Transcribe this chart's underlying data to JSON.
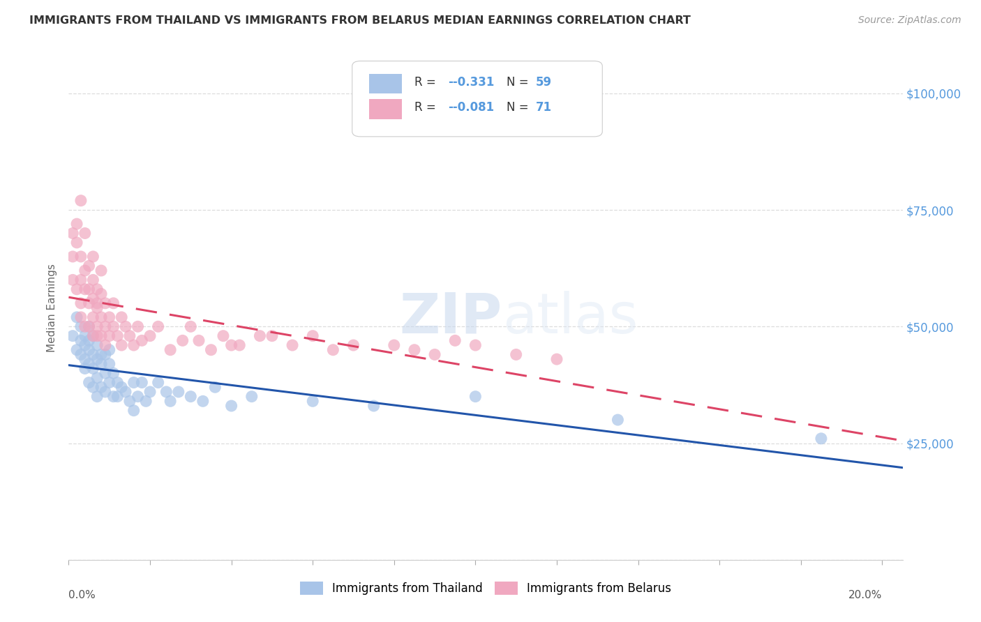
{
  "title": "IMMIGRANTS FROM THAILAND VS IMMIGRANTS FROM BELARUS MEDIAN EARNINGS CORRELATION CHART",
  "source": "Source: ZipAtlas.com",
  "ylabel": "Median Earnings",
  "yticks": [
    0,
    25000,
    50000,
    75000,
    100000
  ],
  "ytick_labels": [
    "",
    "$25,000",
    "$50,000",
    "$75,000",
    "$100,000"
  ],
  "xlim": [
    0.0,
    0.205
  ],
  "ylim": [
    0,
    108000
  ],
  "watermark_zip": "ZIP",
  "watermark_atlas": "atlas",
  "legend_blue_r": "-0.331",
  "legend_blue_n": "59",
  "legend_pink_r": "-0.081",
  "legend_pink_n": "71",
  "legend_blue_label": "Immigrants from Thailand",
  "legend_pink_label": "Immigrants from Belarus",
  "blue_scatter_color": "#a8c4e8",
  "pink_scatter_color": "#f0a8c0",
  "blue_line_color": "#2255aa",
  "pink_line_color": "#dd4466",
  "background_color": "#ffffff",
  "grid_color": "#dddddd",
  "title_color": "#333333",
  "right_tick_color": "#5599dd",
  "watermark_color": "#d0dff0",
  "thailand_x": [
    0.001,
    0.002,
    0.002,
    0.003,
    0.003,
    0.003,
    0.004,
    0.004,
    0.004,
    0.004,
    0.005,
    0.005,
    0.005,
    0.005,
    0.005,
    0.006,
    0.006,
    0.006,
    0.006,
    0.007,
    0.007,
    0.007,
    0.007,
    0.008,
    0.008,
    0.008,
    0.009,
    0.009,
    0.009,
    0.01,
    0.01,
    0.01,
    0.011,
    0.011,
    0.012,
    0.012,
    0.013,
    0.014,
    0.015,
    0.016,
    0.016,
    0.017,
    0.018,
    0.019,
    0.02,
    0.022,
    0.024,
    0.025,
    0.027,
    0.03,
    0.033,
    0.036,
    0.04,
    0.045,
    0.06,
    0.075,
    0.1,
    0.135,
    0.185
  ],
  "thailand_y": [
    48000,
    52000,
    45000,
    50000,
    44000,
    47000,
    43000,
    48000,
    41000,
    46000,
    50000,
    42000,
    45000,
    47000,
    38000,
    44000,
    48000,
    41000,
    37000,
    43000,
    46000,
    39000,
    35000,
    42000,
    44000,
    37000,
    40000,
    44000,
    36000,
    42000,
    45000,
    38000,
    40000,
    35000,
    38000,
    35000,
    37000,
    36000,
    34000,
    38000,
    32000,
    35000,
    38000,
    34000,
    36000,
    38000,
    36000,
    34000,
    36000,
    35000,
    34000,
    37000,
    33000,
    35000,
    34000,
    33000,
    35000,
    30000,
    26000
  ],
  "belarus_x": [
    0.001,
    0.001,
    0.001,
    0.002,
    0.002,
    0.002,
    0.003,
    0.003,
    0.003,
    0.003,
    0.003,
    0.004,
    0.004,
    0.004,
    0.004,
    0.005,
    0.005,
    0.005,
    0.005,
    0.006,
    0.006,
    0.006,
    0.006,
    0.006,
    0.007,
    0.007,
    0.007,
    0.007,
    0.007,
    0.008,
    0.008,
    0.008,
    0.008,
    0.009,
    0.009,
    0.009,
    0.01,
    0.01,
    0.011,
    0.011,
    0.012,
    0.013,
    0.013,
    0.014,
    0.015,
    0.016,
    0.017,
    0.018,
    0.02,
    0.022,
    0.025,
    0.028,
    0.03,
    0.035,
    0.038,
    0.042,
    0.047,
    0.055,
    0.065,
    0.08,
    0.09,
    0.1,
    0.11,
    0.12,
    0.095,
    0.085,
    0.07,
    0.06,
    0.05,
    0.04,
    0.032
  ],
  "belarus_y": [
    70000,
    65000,
    60000,
    72000,
    68000,
    58000,
    77000,
    65000,
    55000,
    60000,
    52000,
    62000,
    70000,
    50000,
    58000,
    55000,
    63000,
    50000,
    58000,
    56000,
    48000,
    60000,
    52000,
    65000,
    54000,
    50000,
    58000,
    48000,
    55000,
    52000,
    62000,
    48000,
    57000,
    50000,
    55000,
    46000,
    52000,
    48000,
    55000,
    50000,
    48000,
    52000,
    46000,
    50000,
    48000,
    46000,
    50000,
    47000,
    48000,
    50000,
    45000,
    47000,
    50000,
    45000,
    48000,
    46000,
    48000,
    46000,
    45000,
    46000,
    44000,
    46000,
    44000,
    43000,
    47000,
    45000,
    46000,
    48000,
    48000,
    46000,
    47000
  ]
}
